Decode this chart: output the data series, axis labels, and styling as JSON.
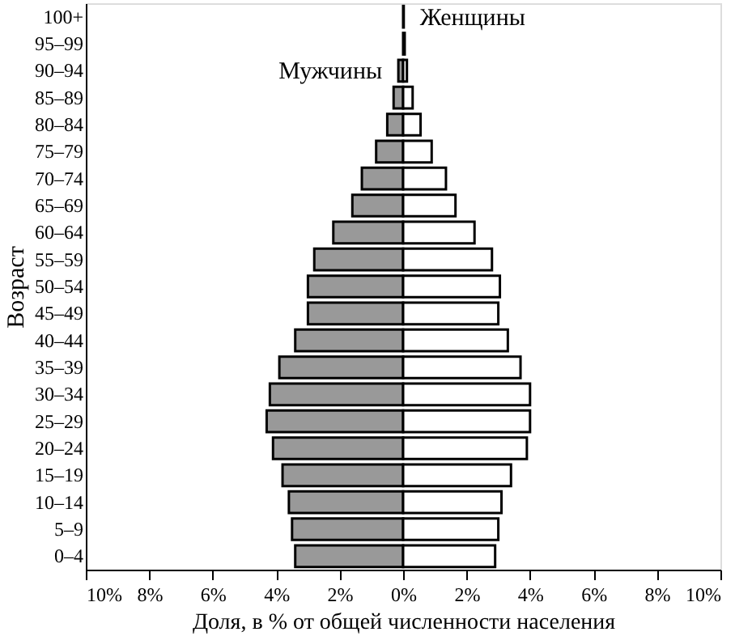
{
  "chart_data": {
    "type": "bar",
    "orientation": "horizontal",
    "xlabel": "Доля, в % от общей численности населения",
    "ylabel": "Возраст",
    "categories": [
      "100+",
      "95–99",
      "90–94",
      "85–89",
      "80–84",
      "75–79",
      "70–74",
      "65–69",
      "60–64",
      "55–59",
      "50–54",
      "45–49",
      "40–44",
      "35–39",
      "30–34",
      "25–29",
      "20–24",
      "15–19",
      "10–14",
      "5–9",
      "0–4"
    ],
    "series": [
      {
        "name": "Мужчины",
        "color": "#999999",
        "values": [
          null,
          null,
          -0.15,
          -0.3,
          -0.5,
          -0.85,
          -1.3,
          -1.6,
          -2.2,
          -2.8,
          -3.0,
          -3.0,
          -3.4,
          -3.9,
          -4.2,
          -4.3,
          -4.1,
          -3.8,
          -3.6,
          -3.5,
          -3.4
        ]
      },
      {
        "name": "Женщины",
        "color": "#ffffff",
        "values": [
          0.02,
          0.05,
          0.12,
          0.3,
          0.55,
          0.9,
          1.35,
          1.65,
          2.25,
          2.8,
          3.05,
          3.0,
          3.3,
          3.7,
          4.0,
          4.0,
          3.9,
          3.4,
          3.1,
          3.0,
          2.9
        ]
      }
    ],
    "xlim": [
      -10,
      10
    ],
    "xticks": [
      {
        "value": -10,
        "label": "10%"
      },
      {
        "value": -8,
        "label": "8%"
      },
      {
        "value": -6,
        "label": "6%"
      },
      {
        "value": -4,
        "label": "4%"
      },
      {
        "value": -2,
        "label": "2%"
      },
      {
        "value": 0,
        "label": "0%"
      },
      {
        "value": 2,
        "label": "2%"
      },
      {
        "value": 4,
        "label": "4%"
      },
      {
        "value": 6,
        "label": "6%"
      },
      {
        "value": 8,
        "label": "8%"
      },
      {
        "value": 10,
        "label": "10%"
      }
    ],
    "grid": false,
    "stacked": true
  }
}
